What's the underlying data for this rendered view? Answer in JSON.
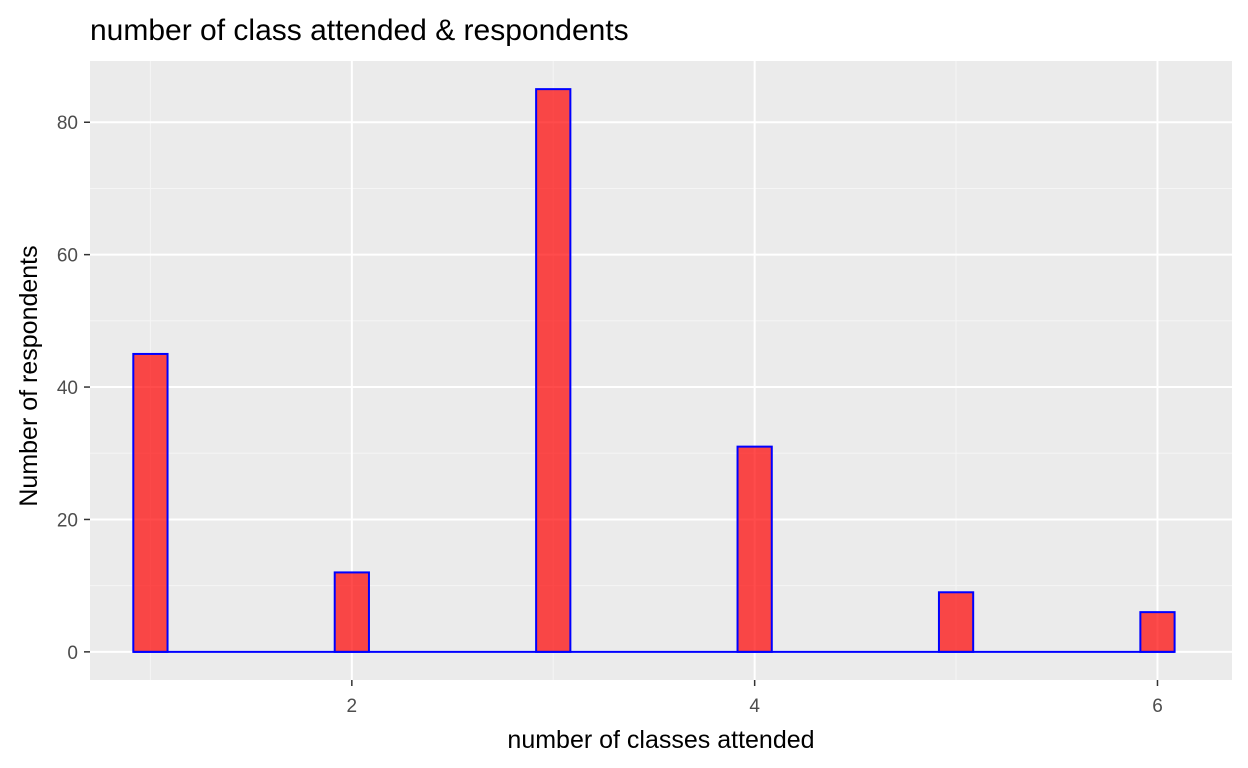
{
  "chart_data": {
    "type": "bar",
    "title": "number of class attended & respondents",
    "xlabel": "number of classes attended",
    "ylabel": "Number of respondents",
    "x": [
      1,
      2,
      3,
      4,
      5,
      6
    ],
    "values": [
      45,
      12,
      85,
      31,
      9,
      6
    ],
    "xlim": [
      0.7,
      6.37
    ],
    "ylim": [
      -4.25,
      89.25
    ],
    "x_ticks": [
      2,
      4,
      6
    ],
    "x_tick_labels": [
      "2",
      "4",
      "6"
    ],
    "y_ticks": [
      0,
      20,
      40,
      60,
      80
    ],
    "y_tick_labels": [
      "0",
      "20",
      "40",
      "60",
      "80"
    ],
    "bin_width": 0.17,
    "grid": true,
    "legend": "none",
    "colors": {
      "panel_background": "#ebebeb",
      "grid_major": "#ffffff",
      "grid_minor": "#f5f5f5",
      "bar_fill": "#ff0000",
      "bar_fill_alpha": 0.7,
      "bar_outline": "#0000ff",
      "tick_label": "#4d4d4d",
      "tick_mark": "#333333",
      "text": "#000000"
    }
  }
}
